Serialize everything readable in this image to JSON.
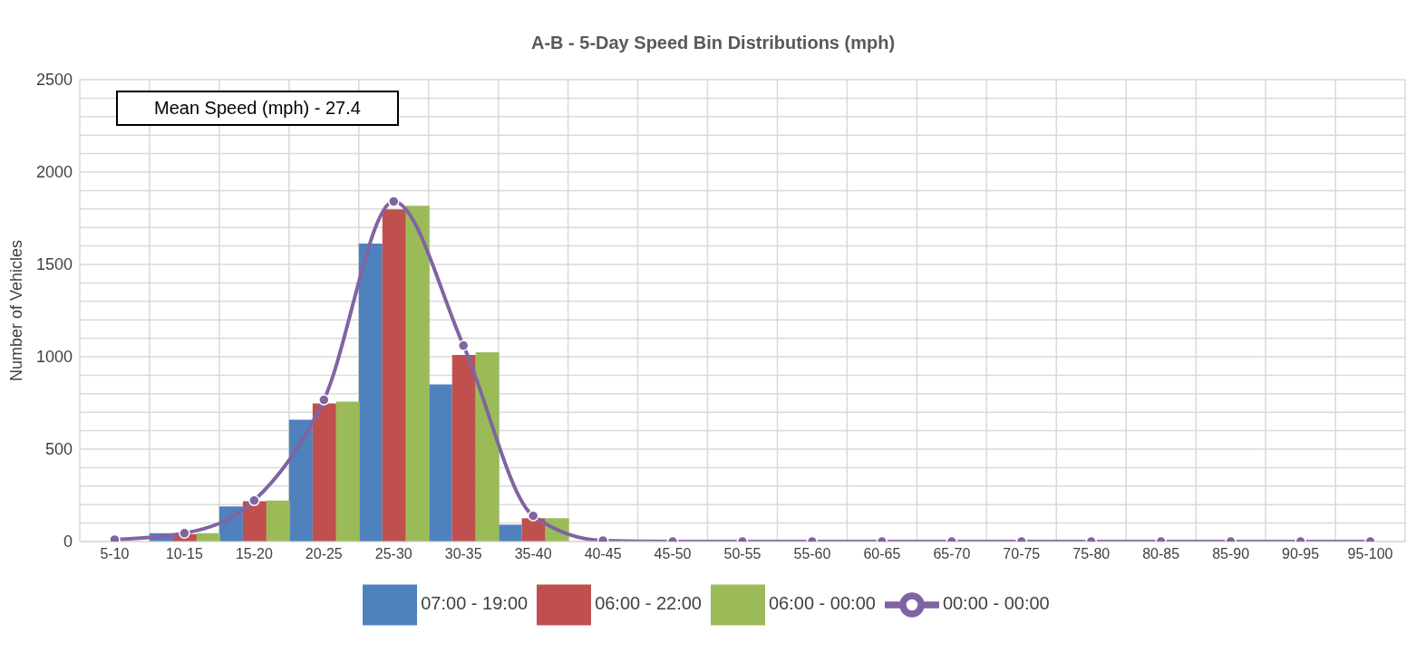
{
  "chart_data": {
    "type": "bar",
    "title": "A-B - 5-Day Speed Bin Distributions (mph)",
    "ylabel": "Number of Vehicles",
    "categories": [
      "5-10",
      "10-15",
      "15-20",
      "20-25",
      "25-30",
      "30-35",
      "35-40",
      "40-45",
      "45-50",
      "50-55",
      "55-60",
      "60-65",
      "65-70",
      "70-75",
      "75-80",
      "80-85",
      "85-90",
      "90-95",
      "95-100"
    ],
    "series": [
      {
        "name": "07:00 - 19:00",
        "color": "#4f81bd",
        "values": [
          null,
          45,
          190,
          659,
          1613,
          851,
          91,
          0,
          0,
          0,
          0,
          0,
          0,
          0,
          0,
          0,
          0,
          0,
          0
        ]
      },
      {
        "name": "06:00 - 22:00",
        "color": "#c0504d",
        "values": [
          null,
          40,
          218,
          748,
          1798,
          1010,
          126,
          0,
          0,
          0,
          0,
          0,
          0,
          0,
          0,
          0,
          0,
          0,
          0
        ]
      },
      {
        "name": "06:00 - 00:00",
        "color": "#9bbb59",
        "values": [
          null,
          45,
          222,
          757,
          1818,
          1025,
          126,
          0,
          0,
          0,
          0,
          0,
          0,
          0,
          0,
          0,
          0,
          0,
          0
        ]
      },
      {
        "name": "00:00 - 00:00",
        "type": "line",
        "color": "#8064a2",
        "values": [
          10,
          45,
          222,
          767,
          1841,
          1061,
          139,
          5,
          0,
          0,
          0,
          0,
          0,
          0,
          0,
          0,
          0,
          0,
          0
        ]
      }
    ],
    "ylim": [
      0,
      2500
    ],
    "yticks": [
      0,
      {
        "value": 100,
        "label": null
      },
      {
        "value": 200,
        "label": null
      },
      {
        "value": 300,
        "label": null
      },
      {
        "value": 400,
        "label": null
      },
      500,
      {
        "value": 600,
        "label": null
      },
      {
        "value": 700,
        "label": null
      },
      {
        "value": 800,
        "label": null
      },
      {
        "value": 900,
        "label": null
      },
      1000,
      {
        "value": 1100,
        "label": null
      },
      {
        "value": 1200,
        "label": null
      },
      {
        "value": 1300,
        "label": null
      },
      {
        "value": 1400,
        "label": null
      },
      1500,
      {
        "value": 1600,
        "label": null
      },
      {
        "value": 1700,
        "label": null
      },
      {
        "value": 1800,
        "label": null
      },
      {
        "value": 1900,
        "label": null
      },
      2000,
      {
        "value": 2100,
        "label": null
      },
      {
        "value": 2200,
        "label": null
      },
      {
        "value": 2300,
        "label": null
      },
      {
        "value": 2400,
        "label": null
      },
      2500
    ],
    "grid": true,
    "legend": "bottom",
    "marker": "circle",
    "line_style": "solid",
    "annotations": [
      "Mean Speed (mph) - 27.4"
    ]
  }
}
